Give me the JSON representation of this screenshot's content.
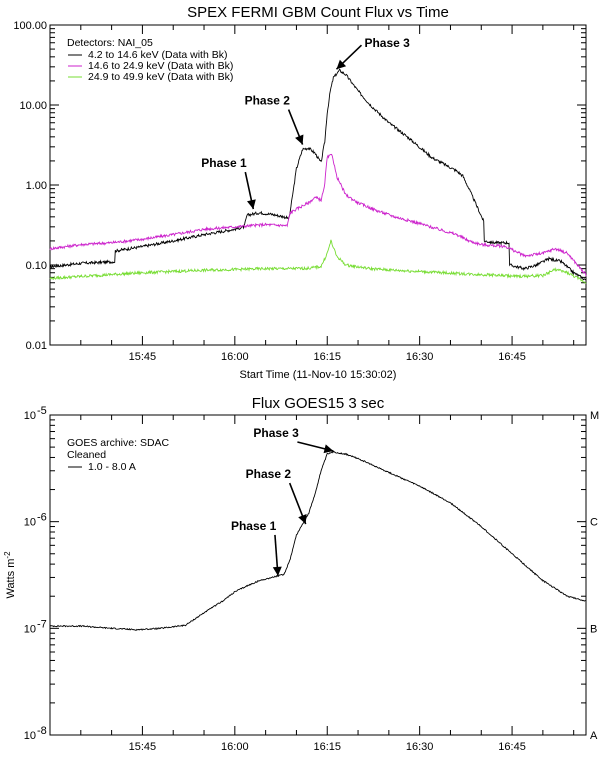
{
  "chart_data": [
    {
      "type": "line",
      "title": "SPEX FERMI GBM Count Flux vs Time",
      "xlabel": "Start Time (11-Nov-10 15:30:02)",
      "ylabel": "",
      "yscale": "log",
      "ylim": [
        0.01,
        100
      ],
      "xlim_minutes": [
        0,
        87
      ],
      "x_unit": "minutes after 15:30:02",
      "y_ticks": [
        {
          "value": 100,
          "label": "100.00"
        },
        {
          "value": 10,
          "label": "10.00"
        },
        {
          "value": 1,
          "label": "1.00"
        },
        {
          "value": 0.1,
          "label": "0.10"
        },
        {
          "value": 0.01,
          "label": "0.01"
        }
      ],
      "x_ticks": [
        {
          "minute": 15,
          "label": "15:45"
        },
        {
          "minute": 30,
          "label": "16:00"
        },
        {
          "minute": 45,
          "label": "16:15"
        },
        {
          "minute": 60,
          "label": "16:30"
        },
        {
          "minute": 75,
          "label": "16:45"
        }
      ],
      "legend_title": "Detectors: NAI_05",
      "legend_position": "top-left",
      "series": [
        {
          "name": "4.2 to 14.6 keV (Data with Bk)",
          "color": "#000000",
          "points": [
            [
              0,
              0.095
            ],
            [
              5,
              0.105
            ],
            [
              10.5,
              0.11
            ],
            [
              10.6,
              0.15
            ],
            [
              15,
              0.17
            ],
            [
              20,
              0.2
            ],
            [
              25,
              0.24
            ],
            [
              30,
              0.28
            ],
            [
              31.5,
              0.3
            ],
            [
              32,
              0.42
            ],
            [
              34,
              0.45
            ],
            [
              36,
              0.43
            ],
            [
              38,
              0.4
            ],
            [
              38.8,
              0.38
            ],
            [
              39.2,
              0.6
            ],
            [
              40,
              1.6
            ],
            [
              41,
              2.8
            ],
            [
              42,
              2.9
            ],
            [
              43,
              2.5
            ],
            [
              44,
              1.9
            ],
            [
              44.6,
              3.5
            ],
            [
              45,
              8
            ],
            [
              45.5,
              15
            ],
            [
              46,
              22
            ],
            [
              47,
              27
            ],
            [
              48,
              24
            ],
            [
              50,
              15
            ],
            [
              52,
              10
            ],
            [
              55,
              6
            ],
            [
              58,
              4
            ],
            [
              62,
              2.2
            ],
            [
              66,
              1.5
            ],
            [
              67,
              1.3
            ],
            [
              68,
              0.9
            ],
            [
              69.5,
              0.5
            ],
            [
              70.4,
              0.35
            ],
            [
              70.5,
              0.2
            ],
            [
              72,
              0.19
            ],
            [
              74,
              0.19
            ],
            [
              74.5,
              0.19
            ],
            [
              74.6,
              0.1
            ],
            [
              77,
              0.09
            ],
            [
              79,
              0.1
            ],
            [
              81,
              0.12
            ],
            [
              83,
              0.11
            ],
            [
              85,
              0.08
            ],
            [
              87,
              0.065
            ]
          ]
        },
        {
          "name": "14.6 to 24.9 keV (Data with Bk)",
          "color": "#cc22cc",
          "points": [
            [
              0,
              0.16
            ],
            [
              5,
              0.18
            ],
            [
              10,
              0.19
            ],
            [
              15,
              0.21
            ],
            [
              20,
              0.24
            ],
            [
              25,
              0.28
            ],
            [
              30,
              0.3
            ],
            [
              35,
              0.32
            ],
            [
              38.5,
              0.31
            ],
            [
              39,
              0.45
            ],
            [
              40,
              0.5
            ],
            [
              41,
              0.55
            ],
            [
              42,
              0.6
            ],
            [
              43,
              0.7
            ],
            [
              44,
              0.65
            ],
            [
              44.5,
              0.9
            ],
            [
              45,
              2.2
            ],
            [
              45.8,
              2.4
            ],
            [
              46.5,
              1.3
            ],
            [
              48,
              0.75
            ],
            [
              50,
              0.6
            ],
            [
              53,
              0.48
            ],
            [
              56,
              0.4
            ],
            [
              60,
              0.33
            ],
            [
              63,
              0.28
            ],
            [
              66,
              0.24
            ],
            [
              68,
              0.2
            ],
            [
              70,
              0.18
            ],
            [
              74,
              0.17
            ],
            [
              77,
              0.13
            ],
            [
              80,
              0.14
            ],
            [
              82,
              0.16
            ],
            [
              84,
              0.14
            ],
            [
              87,
              0.075
            ]
          ]
        },
        {
          "name": "24.9 to 49.9 keV (Data with Bk)",
          "color": "#77dd33",
          "points": [
            [
              0,
              0.068
            ],
            [
              5,
              0.072
            ],
            [
              10,
              0.076
            ],
            [
              15,
              0.08
            ],
            [
              20,
              0.083
            ],
            [
              25,
              0.086
            ],
            [
              30,
              0.088
            ],
            [
              35,
              0.09
            ],
            [
              39,
              0.09
            ],
            [
              42,
              0.091
            ],
            [
              44,
              0.096
            ],
            [
              45,
              0.14
            ],
            [
              45.6,
              0.2
            ],
            [
              46.5,
              0.13
            ],
            [
              48,
              0.1
            ],
            [
              52,
              0.09
            ],
            [
              56,
              0.086
            ],
            [
              60,
              0.083
            ],
            [
              64,
              0.08
            ],
            [
              68,
              0.077
            ],
            [
              72,
              0.075
            ],
            [
              76,
              0.072
            ],
            [
              80,
              0.074
            ],
            [
              82,
              0.088
            ],
            [
              84,
              0.08
            ],
            [
              87,
              0.06
            ]
          ]
        }
      ],
      "annotations": [
        {
          "text": "Phase 1",
          "minute": 33,
          "value": 0.5
        },
        {
          "text": "Phase 2",
          "minute": 41,
          "value": 3.2
        },
        {
          "text": "Phase 3",
          "minute": 46.5,
          "value": 28
        }
      ]
    },
    {
      "type": "line",
      "title": "Flux  GOES15 3 sec",
      "xlabel": "",
      "ylabel": "Watts m",
      "ylabel_superscript": "-2",
      "yscale": "log",
      "ylim": [
        1e-08,
        1e-05
      ],
      "xlim_minutes": [
        0,
        87
      ],
      "y_ticks": [
        {
          "value": 1e-05,
          "base": "10",
          "exp": "-5"
        },
        {
          "value": 1e-06,
          "base": "10",
          "exp": "-6"
        },
        {
          "value": 1e-07,
          "base": "10",
          "exp": "-7"
        },
        {
          "value": 1e-08,
          "base": "10",
          "exp": "-8"
        }
      ],
      "right_axis_labels": [
        {
          "value": 1e-05,
          "label": "M"
        },
        {
          "value": 1e-06,
          "label": "C"
        },
        {
          "value": 1e-07,
          "label": "B"
        },
        {
          "value": 1e-08,
          "label": "A"
        }
      ],
      "x_ticks": [
        {
          "minute": 15,
          "label": "15:45"
        },
        {
          "minute": 30,
          "label": "16:00"
        },
        {
          "minute": 45,
          "label": "16:15"
        },
        {
          "minute": 60,
          "label": "16:30"
        },
        {
          "minute": 75,
          "label": "16:45"
        }
      ],
      "legend_lines": [
        "GOES archive: SDAC",
        "Cleaned"
      ],
      "legend_position": "top-left",
      "series": [
        {
          "name": "1.0 - 8.0 A",
          "color": "#000000",
          "points": [
            [
              0,
              1.05e-07
            ],
            [
              5,
              1.05e-07
            ],
            [
              10,
              1e-07
            ],
            [
              14,
              9.7e-08
            ],
            [
              18,
              1e-07
            ],
            [
              22,
              1.07e-07
            ],
            [
              25,
              1.4e-07
            ],
            [
              28,
              1.8e-07
            ],
            [
              30,
              2.2e-07
            ],
            [
              32,
              2.5e-07
            ],
            [
              34,
              2.8e-07
            ],
            [
              36,
              3e-07
            ],
            [
              38,
              3.2e-07
            ],
            [
              39,
              4.5e-07
            ],
            [
              40,
              7.5e-07
            ],
            [
              41,
              9.5e-07
            ],
            [
              42,
              1.2e-06
            ],
            [
              43,
              1.8e-06
            ],
            [
              44,
              3e-06
            ],
            [
              45,
              4.3e-06
            ],
            [
              46,
              4.5e-06
            ],
            [
              48,
              4.3e-06
            ],
            [
              50,
              3.9e-06
            ],
            [
              55,
              2.9e-06
            ],
            [
              60,
              2.15e-06
            ],
            [
              65,
              1.5e-06
            ],
            [
              70,
              9e-07
            ],
            [
              75,
              5e-07
            ],
            [
              80,
              2.8e-07
            ],
            [
              84,
              2e-07
            ],
            [
              87,
              1.8e-07
            ]
          ]
        }
      ],
      "annotations": [
        {
          "text": "Phase 1",
          "minute": 37,
          "value": 3.1e-07
        },
        {
          "text": "Phase 2",
          "minute": 41.5,
          "value": 9.5e-07
        },
        {
          "text": "Phase 3",
          "minute": 46,
          "value": 4.6e-06
        }
      ]
    }
  ]
}
